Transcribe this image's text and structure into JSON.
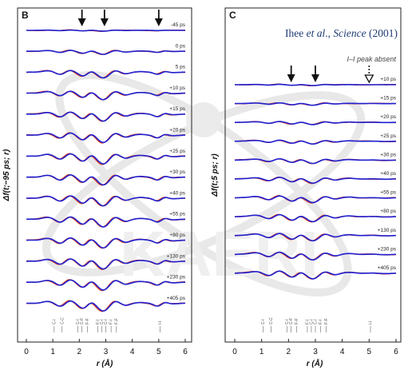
{
  "citation": {
    "author": "Ihee ",
    "etal": "et al",
    "sep": "., ",
    "journal": "Science",
    "year": " (2001)"
  },
  "colors": {
    "blue": "#1f1fd0",
    "red": "#e0401e",
    "watermark": "#d8d8d8"
  },
  "chart_data": [
    {
      "type": "line",
      "panel": "B",
      "ylabel": "Δf(t;−95 ps; r)",
      "xlabel": "r (Å)",
      "xlim": [
        0,
        6
      ],
      "xticks": [
        0,
        1,
        2,
        3,
        4,
        5,
        6
      ],
      "arrows_x": [
        2.1,
        2.95,
        5.0
      ],
      "arrow_style": "solid",
      "delays": [
        "-45 ps",
        "0 ps",
        "5 ps",
        "+10 ps",
        "+15 ps",
        "+20 ps",
        "+25 ps",
        "+30 ps",
        "+40 ps",
        "+55 ps",
        "+80 ps",
        "+130 ps",
        "+230 ps",
        "+405 ps"
      ],
      "amplitudes": [
        0.1,
        0.4,
        0.75,
        0.85,
        0.9,
        0.95,
        1.0,
        1.0,
        1.0,
        1.0,
        1.0,
        1.0,
        1.0,
        1.0
      ],
      "distance_markers": [
        {
          "x": 1.05,
          "label": "C-I"
        },
        {
          "x": 1.35,
          "label": "C-C"
        },
        {
          "x": 1.95,
          "label": "C-I"
        },
        {
          "x": 2.1,
          "label": "C-F"
        },
        {
          "x": 2.3,
          "label": "F-F"
        },
        {
          "x": 2.7,
          "label": "F-I"
        },
        {
          "x": 2.85,
          "label": "C-I"
        },
        {
          "x": 3.0,
          "label": "C-I"
        },
        {
          "x": 3.2,
          "label": "F-I"
        },
        {
          "x": 3.4,
          "label": "F-F"
        },
        {
          "x": 5.05,
          "label": "I-I"
        }
      ]
    },
    {
      "type": "line",
      "panel": "C",
      "ylabel": "Δf(t;5 ps; r)",
      "xlabel": "r (Å)",
      "xlim": [
        0,
        6
      ],
      "xticks": [
        0,
        1,
        2,
        3,
        4,
        5,
        6
      ],
      "arrows_x": [
        2.1,
        3.0,
        5.0
      ],
      "arrow_style": "solid,solid,dashed-open",
      "note": "I–I peak absent",
      "delays": [
        "+10 ps",
        "+15 ps",
        "+20 ps",
        "+25 ps",
        "+30 ps",
        "+40 ps",
        "+55 ps",
        "+80 ps",
        "+130 ps",
        "+230 ps",
        "+405 ps"
      ],
      "amplitudes": [
        0.15,
        0.3,
        0.4,
        0.5,
        0.6,
        0.75,
        0.85,
        0.9,
        0.95,
        1.0,
        1.0
      ],
      "distance_markers": [
        {
          "x": 1.05,
          "label": "C-I"
        },
        {
          "x": 1.35,
          "label": "C-C"
        },
        {
          "x": 1.95,
          "label": "C-I"
        },
        {
          "x": 2.1,
          "label": "C-F"
        },
        {
          "x": 2.3,
          "label": "F-F"
        },
        {
          "x": 2.7,
          "label": "F-I"
        },
        {
          "x": 2.85,
          "label": "C-I"
        },
        {
          "x": 3.0,
          "label": "C-I"
        },
        {
          "x": 3.2,
          "label": "F-I"
        },
        {
          "x": 3.4,
          "label": "F-F"
        },
        {
          "x": 5.05,
          "label": "I-I"
        }
      ]
    }
  ]
}
